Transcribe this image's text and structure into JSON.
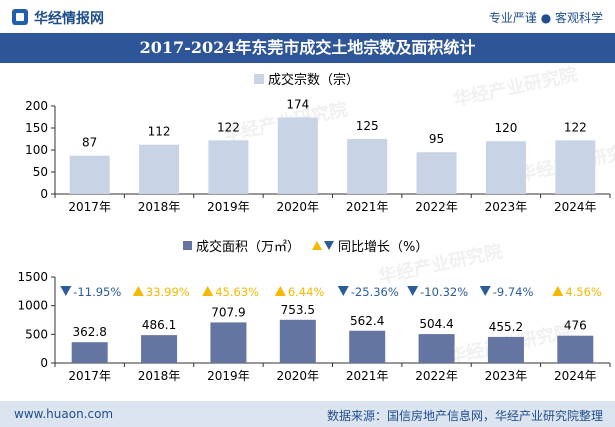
{
  "header": {
    "brand": "华经情报网",
    "tagline": "专业严谨 ● 客观科学"
  },
  "title": "2017-2024年东莞市成交土地宗数及面积统计",
  "footer": {
    "site": "www.huaon.com",
    "source": "数据来源：国信房地产信息网，华经产业研究院整理"
  },
  "watermark": "华经产业研究院",
  "colors": {
    "bar": "#c9d3e6",
    "bar2": "#6375a0",
    "up": "#f5b800",
    "down": "#2b5c9a",
    "title_bg": "#2e5597"
  },
  "chart_data": [
    {
      "type": "bar",
      "categories": [
        "2017年",
        "2018年",
        "2019年",
        "2020年",
        "2021年",
        "2022年",
        "2023年",
        "2024年"
      ],
      "series": [
        {
          "name": "成交宗数（宗）",
          "values": [
            87,
            112,
            122,
            174,
            125,
            95,
            120,
            122
          ]
        }
      ],
      "ylim": [
        0,
        200
      ],
      "yticks": [
        0,
        50,
        100,
        150,
        200
      ],
      "legend_position": "top-center",
      "grid": false
    },
    {
      "type": "bar",
      "categories": [
        "2017年",
        "2018年",
        "2019年",
        "2020年",
        "2021年",
        "2022年",
        "2023年",
        "2024年"
      ],
      "series": [
        {
          "name": "成交面积（万㎡）",
          "values": [
            362.8,
            486.1,
            707.9,
            753.5,
            562.4,
            504.4,
            455.2,
            476
          ]
        }
      ],
      "yoy_name": "同比增长（%）",
      "yoy": [
        -11.95,
        33.99,
        45.63,
        6.44,
        -25.36,
        -10.32,
        -9.74,
        4.56
      ],
      "yoy_labels": [
        "-11.95%",
        "33.99%",
        "45.63%",
        "6.44%",
        "-25.36%",
        "-10.32%",
        "-9.74%",
        "4.56%"
      ],
      "ylim": [
        0,
        1500
      ],
      "yticks": [
        0,
        500,
        1000,
        1500
      ],
      "legend_position": "top-center",
      "grid": false
    }
  ]
}
